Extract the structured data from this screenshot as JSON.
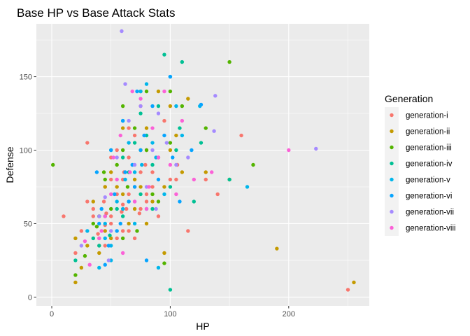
{
  "chart_data": {
    "type": "scatter",
    "title": "Base HP vs Base Attack Stats",
    "xlabel": "HP",
    "ylabel": "Defense",
    "xlim": [
      -13,
      268
    ],
    "ylim": [
      -6,
      186
    ],
    "x_ticks": [
      0,
      100,
      200
    ],
    "y_ticks": [
      0,
      50,
      100,
      150
    ],
    "grid": true,
    "legend": {
      "title": "Generation",
      "placement": "right"
    },
    "series": [
      {
        "name": "generation-i",
        "color": "#F8766D",
        "points": [
          [
            10,
            55
          ],
          [
            20,
            30
          ],
          [
            25,
            45
          ],
          [
            30,
            105
          ],
          [
            35,
            60
          ],
          [
            39,
            43
          ],
          [
            40,
            40
          ],
          [
            44,
            65
          ],
          [
            45,
            49
          ],
          [
            45,
            35
          ],
          [
            46,
            57
          ],
          [
            50,
            50
          ],
          [
            50,
            80
          ],
          [
            55,
            40
          ],
          [
            55,
            100
          ],
          [
            59,
            58
          ],
          [
            60,
            80
          ],
          [
            60,
            63
          ],
          [
            61,
            85
          ],
          [
            63,
            60
          ],
          [
            65,
            45
          ],
          [
            65,
            95
          ],
          [
            65,
            115
          ],
          [
            70,
            75
          ],
          [
            70,
            110
          ],
          [
            74,
            57
          ],
          [
            75,
            60
          ],
          [
            75,
            130
          ],
          [
            79,
            90
          ],
          [
            80,
            100
          ],
          [
            80,
            70
          ],
          [
            85,
            85
          ],
          [
            90,
            95
          ],
          [
            90,
            55
          ],
          [
            95,
            120
          ],
          [
            100,
            80
          ],
          [
            105,
            80
          ],
          [
            106,
            90
          ],
          [
            115,
            45
          ],
          [
            130,
            80
          ],
          [
            140,
            70
          ],
          [
            160,
            110
          ],
          [
            250,
            5
          ],
          [
            30,
            65
          ],
          [
            40,
            35
          ],
          [
            50,
            95
          ],
          [
            55,
            70
          ],
          [
            60,
            45
          ],
          [
            65,
            70
          ],
          [
            70,
            40
          ],
          [
            75,
            85
          ],
          [
            80,
            65
          ],
          [
            85,
            75
          ],
          [
            50,
            55
          ],
          [
            35,
            55
          ],
          [
            45,
            75
          ]
        ]
      },
      {
        "name": "generation-ii",
        "color": "#C49A00",
        "points": [
          [
            20,
            10
          ],
          [
            30,
            35
          ],
          [
            35,
            65
          ],
          [
            40,
            30
          ],
          [
            45,
            75
          ],
          [
            50,
            40
          ],
          [
            55,
            75
          ],
          [
            60,
            115
          ],
          [
            65,
            50
          ],
          [
            70,
            80
          ],
          [
            75,
            140
          ],
          [
            75,
            75
          ],
          [
            80,
            115
          ],
          [
            90,
            140
          ],
          [
            95,
            30
          ],
          [
            100,
            100
          ],
          [
            100,
            130
          ],
          [
            110,
            85
          ],
          [
            115,
            135
          ],
          [
            130,
            85
          ],
          [
            150,
            80
          ],
          [
            190,
            33
          ],
          [
            255,
            10
          ],
          [
            20,
            40
          ],
          [
            45,
            45
          ],
          [
            60,
            70
          ],
          [
            85,
            65
          ],
          [
            105,
            110
          ],
          [
            25,
            20
          ],
          [
            70,
            60
          ],
          [
            50,
            85
          ],
          [
            40,
            55
          ],
          [
            95,
            75
          ],
          [
            80,
            50
          ]
        ]
      },
      {
        "name": "generation-iii",
        "color": "#53B400",
        "points": [
          [
            1,
            90
          ],
          [
            20,
            15
          ],
          [
            28,
            28
          ],
          [
            35,
            50
          ],
          [
            40,
            55
          ],
          [
            45,
            80
          ],
          [
            50,
            60
          ],
          [
            55,
            90
          ],
          [
            60,
            100
          ],
          [
            64,
            75
          ],
          [
            70,
            115
          ],
          [
            72,
            45
          ],
          [
            80,
            100
          ],
          [
            90,
            65
          ],
          [
            95,
            23
          ],
          [
            100,
            140
          ],
          [
            110,
            130
          ],
          [
            130,
            115
          ],
          [
            150,
            160
          ],
          [
            170,
            90
          ],
          [
            38,
            48
          ],
          [
            60,
            40
          ],
          [
            75,
            100
          ],
          [
            85,
            70
          ],
          [
            44,
            85
          ],
          [
            80,
            140
          ],
          [
            100,
            105
          ],
          [
            60,
            130
          ]
        ]
      },
      {
        "name": "generation-iv",
        "color": "#00C094",
        "points": [
          [
            20,
            25
          ],
          [
            35,
            40
          ],
          [
            40,
            35
          ],
          [
            45,
            55
          ],
          [
            49,
            42
          ],
          [
            55,
            60
          ],
          [
            60,
            95
          ],
          [
            65,
            85
          ],
          [
            70,
            105
          ],
          [
            75,
            125
          ],
          [
            80,
            110
          ],
          [
            85,
            60
          ],
          [
            90,
            130
          ],
          [
            95,
            165
          ],
          [
            100,
            5
          ],
          [
            100,
            75
          ],
          [
            108,
            115
          ],
          [
            110,
            160
          ],
          [
            120,
            65
          ],
          [
            126,
            105
          ],
          [
            150,
            80
          ],
          [
            50,
            100
          ],
          [
            65,
            65
          ],
          [
            85,
            90
          ],
          [
            75,
            70
          ],
          [
            105,
            100
          ],
          [
            60,
            55
          ]
        ]
      },
      {
        "name": "generation-v",
        "color": "#00B6EB",
        "points": [
          [
            30,
            45
          ],
          [
            45,
            50
          ],
          [
            50,
            25
          ],
          [
            55,
            65
          ],
          [
            60,
            120
          ],
          [
            62,
            80
          ],
          [
            65,
            105
          ],
          [
            70,
            50
          ],
          [
            75,
            140
          ],
          [
            76,
            90
          ],
          [
            80,
            60
          ],
          [
            85,
            105
          ],
          [
            90,
            20
          ],
          [
            95,
            70
          ],
          [
            100,
            150
          ],
          [
            105,
            130
          ],
          [
            110,
            110
          ],
          [
            125,
            130
          ],
          [
            165,
            75
          ],
          [
            40,
            20
          ],
          [
            50,
            35
          ],
          [
            88,
            95
          ],
          [
            70,
            85
          ],
          [
            60,
            60
          ],
          [
            80,
            145
          ],
          [
            45,
            40
          ]
        ]
      },
      {
        "name": "generation-vi",
        "color": "#06A4FF",
        "points": [
          [
            38,
            85
          ],
          [
            42,
            60
          ],
          [
            45,
            22
          ],
          [
            50,
            100
          ],
          [
            53,
            70
          ],
          [
            55,
            45
          ],
          [
            58,
            50
          ],
          [
            60,
            120
          ],
          [
            65,
            65
          ],
          [
            68,
            90
          ],
          [
            70,
            75
          ],
          [
            75,
            100
          ],
          [
            78,
            110
          ],
          [
            80,
            25
          ],
          [
            85,
            130
          ],
          [
            90,
            80
          ],
          [
            100,
            150
          ],
          [
            102,
            95
          ],
          [
            108,
            65
          ],
          [
            118,
            100
          ],
          [
            126,
            131
          ],
          [
            40,
            50
          ],
          [
            48,
            35
          ],
          [
            62,
            85
          ],
          [
            72,
            140
          ],
          [
            95,
            110
          ]
        ]
      },
      {
        "name": "generation-vii",
        "color": "#A58AFF",
        "points": [
          [
            25,
            35
          ],
          [
            40,
            55
          ],
          [
            45,
            68
          ],
          [
            50,
            45
          ],
          [
            55,
            95
          ],
          [
            59,
            181
          ],
          [
            65,
            120
          ],
          [
            70,
            90
          ],
          [
            75,
            130
          ],
          [
            80,
            75
          ],
          [
            88,
            60
          ],
          [
            97,
            105
          ],
          [
            105,
            90
          ],
          [
            115,
            95
          ],
          [
            137,
            113
          ],
          [
            138,
            137
          ],
          [
            223,
            101
          ],
          [
            48,
            25
          ],
          [
            62,
            145
          ],
          [
            85,
            100
          ],
          [
            90,
            125
          ],
          [
            70,
            65
          ]
        ]
      },
      {
        "name": "generation-viii",
        "color": "#FB61D7",
        "points": [
          [
            28,
            38
          ],
          [
            32,
            22
          ],
          [
            40,
            40
          ],
          [
            42,
            45
          ],
          [
            50,
            70
          ],
          [
            52,
            95
          ],
          [
            55,
            80
          ],
          [
            60,
            30
          ],
          [
            66,
            85
          ],
          [
            70,
            65
          ],
          [
            75,
            135
          ],
          [
            80,
            60
          ],
          [
            85,
            115
          ],
          [
            90,
            95
          ],
          [
            95,
            140
          ],
          [
            100,
            90
          ],
          [
            110,
            120
          ],
          [
            120,
            80
          ],
          [
            135,
            85
          ],
          [
            200,
            100
          ],
          [
            45,
            55
          ],
          [
            58,
            110
          ],
          [
            68,
            140
          ],
          [
            82,
            75
          ],
          [
            105,
            70
          ]
        ]
      }
    ]
  }
}
